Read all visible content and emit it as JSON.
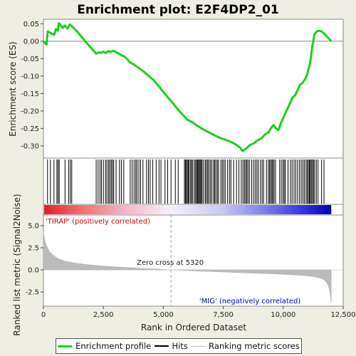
{
  "chart_data": {
    "type": "line",
    "title": "Enrichment plot: E2F4DP2_01",
    "xlabel": "Rank in Ordered Dataset",
    "xlim": [
      0,
      12500
    ],
    "x_ticks": [
      0,
      2500,
      5000,
      7500,
      10000,
      12500
    ],
    "x_tick_labels": [
      "0",
      "2,500",
      "5,000",
      "7,500",
      "10,000",
      "12,500"
    ],
    "n_genes": 12000,
    "es_panel": {
      "ylabel": "Enrichment score (ES)",
      "ylim": [
        -0.335,
        0.063
      ],
      "y_ticks": [
        0.05,
        0.0,
        -0.05,
        -0.1,
        -0.15,
        -0.2,
        -0.25,
        -0.3
      ],
      "y_tick_labels": [
        "0.05",
        "0.00",
        "-0.05",
        "-0.10",
        "-0.15",
        "-0.20",
        "-0.25",
        "-0.30"
      ],
      "series": [
        {
          "name": "Enrichment profile",
          "color": "#1bd11b",
          "x": [
            0,
            130,
            180,
            450,
            520,
            600,
            640,
            700,
            800,
            900,
            1000,
            1100,
            1200,
            1400,
            1600,
            1800,
            2000,
            2200,
            2300,
            2400,
            2500,
            2600,
            2700,
            2800,
            2900,
            3000,
            3100,
            3200,
            3300,
            3400,
            3500,
            3600,
            3800,
            4000,
            4200,
            4400,
            4600,
            4800,
            5000,
            5200,
            5400,
            5600,
            5800,
            6000,
            6200,
            6400,
            6600,
            6800,
            7000,
            7200,
            7400,
            7600,
            7800,
            8000,
            8200,
            8300,
            8400,
            8500,
            8600,
            8800,
            8900,
            9000,
            9100,
            9200,
            9300,
            9400,
            9500,
            9600,
            9700,
            9800,
            9900,
            10000,
            10100,
            10200,
            10300,
            10400,
            10500,
            10600,
            10700,
            10800,
            10900,
            11000,
            11050,
            11100,
            11150,
            11200,
            11250,
            11300,
            11400,
            11500,
            11600,
            11700,
            11800,
            12000
          ],
          "y": [
            0.0,
            -0.01,
            0.028,
            0.018,
            0.035,
            0.03,
            0.052,
            0.047,
            0.038,
            0.045,
            0.036,
            0.048,
            0.042,
            0.028,
            0.012,
            -0.005,
            -0.02,
            -0.036,
            -0.032,
            -0.033,
            -0.03,
            -0.034,
            -0.028,
            -0.031,
            -0.027,
            -0.03,
            -0.034,
            -0.038,
            -0.042,
            -0.045,
            -0.052,
            -0.06,
            -0.068,
            -0.078,
            -0.088,
            -0.1,
            -0.112,
            -0.128,
            -0.145,
            -0.162,
            -0.178,
            -0.195,
            -0.21,
            -0.225,
            -0.232,
            -0.242,
            -0.25,
            -0.258,
            -0.265,
            -0.272,
            -0.278,
            -0.283,
            -0.288,
            -0.295,
            -0.305,
            -0.315,
            -0.31,
            -0.305,
            -0.298,
            -0.292,
            -0.285,
            -0.282,
            -0.278,
            -0.27,
            -0.265,
            -0.26,
            -0.248,
            -0.24,
            -0.25,
            -0.255,
            -0.235,
            -0.22,
            -0.205,
            -0.19,
            -0.175,
            -0.16,
            -0.155,
            -0.14,
            -0.125,
            -0.12,
            -0.11,
            -0.095,
            -0.08,
            -0.07,
            -0.05,
            -0.02,
            0.0,
            0.02,
            0.028,
            0.03,
            0.028,
            0.022,
            0.015,
            0.0
          ]
        }
      ]
    },
    "hits_panel": {
      "name": "Hits",
      "color": "#000000",
      "x": [
        170,
        290,
        440,
        560,
        610,
        660,
        900,
        1050,
        1120,
        1180,
        2200,
        2280,
        2360,
        2420,
        2500,
        2590,
        2650,
        2720,
        2770,
        2830,
        2880,
        2930,
        3030,
        3170,
        3250,
        3350,
        3620,
        3700,
        3780,
        3850,
        3900,
        3980,
        4050,
        4150,
        4300,
        4380,
        4450,
        4560,
        4700,
        4820,
        4900,
        5070,
        5180,
        5320,
        5500,
        5620,
        5880,
        5920,
        5960,
        6000,
        6040,
        6080,
        6140,
        6180,
        6230,
        6300,
        6350,
        6390,
        6430,
        6470,
        6500,
        6540,
        6580,
        6620,
        6680,
        6750,
        6800,
        6850,
        6900,
        6960,
        7020,
        7090,
        7140,
        7190,
        7250,
        7300,
        7400,
        7460,
        7520,
        7580,
        7680,
        7760,
        7820,
        7930,
        8050,
        8150,
        8250,
        8320,
        8380,
        8430,
        8480,
        8530,
        8590,
        8680,
        8760,
        8830,
        8900,
        8960,
        9050,
        9120,
        9180,
        9300,
        9380,
        9430,
        9480,
        9530,
        9570,
        9620,
        9680,
        9850,
        9920,
        9990,
        10040,
        10090,
        10200,
        10300,
        10370,
        10450,
        10520,
        10600,
        10680,
        10750,
        10820,
        10880,
        10950,
        11000,
        11050,
        11090,
        11130,
        11170,
        11220,
        11260,
        11310,
        11380,
        11450,
        11600,
        11700
      ]
    },
    "rank_panel": {
      "ylabel": "Ranked list metric (Signal2Noise)",
      "name": "Ranking metric scores",
      "color": "#bbbbbb",
      "ylim": [
        -4.1,
        6.2
      ],
      "y_ticks": [
        5.0,
        2.5,
        0.0,
        -2.5
      ],
      "y_tick_labels": [
        "5.0",
        "2.5",
        "0.0",
        "-2.5"
      ],
      "x": [
        0,
        30,
        80,
        150,
        250,
        400,
        600,
        900,
        1300,
        1800,
        2500,
        3500,
        4500,
        5320,
        6500,
        7500,
        8500,
        9500,
        10000,
        10500,
        11000,
        11300,
        11500,
        11650,
        11750,
        11820,
        11880,
        11930,
        11970,
        12000
      ],
      "y": [
        4.3,
        3.7,
        3.1,
        2.6,
        2.1,
        1.65,
        1.3,
        0.98,
        0.78,
        0.6,
        0.43,
        0.26,
        0.12,
        0.0,
        -0.14,
        -0.24,
        -0.35,
        -0.44,
        -0.5,
        -0.57,
        -0.68,
        -0.78,
        -0.9,
        -1.05,
        -1.25,
        -1.5,
        -1.8,
        -2.3,
        -3.0,
        -3.7
      ],
      "zero_cross": 5320,
      "zero_cross_label": "Zero cross at 5320",
      "pos_label": "'TIRAP' (positively correlated)",
      "neg_label": "'MIG' (negatively correlated)",
      "pos_color": "#cc0000",
      "neg_color": "#0000bb"
    }
  },
  "legend": {
    "profile": "Enrichment profile",
    "hits": "Hits",
    "rank": "Ranking metric scores"
  }
}
